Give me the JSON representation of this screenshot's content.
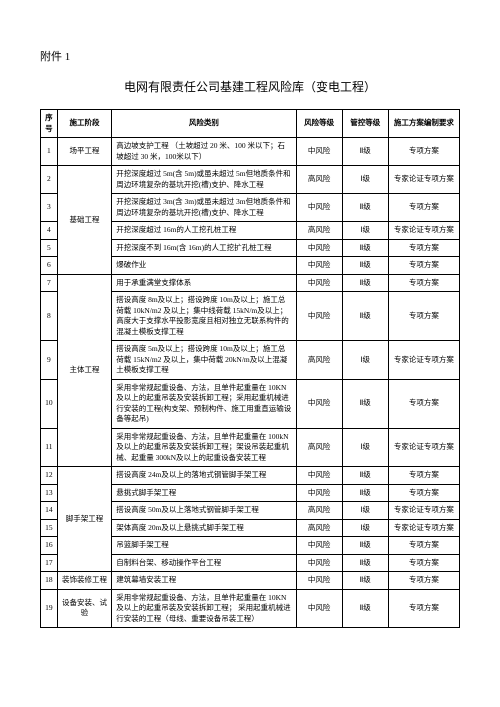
{
  "attachment_label": "附件 1",
  "title": "电网有限责任公司基建工程风险库（变电工程）",
  "headers": {
    "seq": "序号",
    "stage": "施工阶段",
    "category": "风险类别",
    "risk_level": "风险等级",
    "ctrl_level": "管控等级",
    "plan_req": "施工方案编制要求"
  },
  "stages": {
    "s1": "场平工程",
    "s2": "基础工程",
    "s3": "主体工程",
    "s4": "脚手架工程",
    "s5": "装饰装修工程",
    "s6": "设备安装、试验"
  },
  "risk": {
    "mid": "中风险",
    "high": "高风险"
  },
  "ctrl": {
    "l1": "Ⅰ级",
    "l2": "Ⅱ级"
  },
  "plan": {
    "zx": "专项方案",
    "zj": "专家论证专项方案"
  },
  "rows": {
    "r1": "高边坡支护工程  （土坡超过 20 米、100 米以下；石坡超过 30 米，100米以下）",
    "r2": "开挖深度超过  5m(含  5m)或虽未超过  5m但地质条件和周边环境复杂的基坑开挖(槽)支护、降水工程",
    "r3": "开挖深度超过  3m(含  3m)或虽未超过  3m但地质条件和周边环境复杂的基坑开挖(槽)支护、降水工程",
    "r4": "开挖深度超过  16m的人工挖孔桩工程",
    "r5": "开挖深度不到  16m(含 16m)的人工挖扩孔桩工程",
    "r6": "爆破作业",
    "r7": "用于承重满堂支撑体系",
    "r8": "搭设高度 8m及以上；搭设跨度  10m及以上；施工总荷载 10kN/m2 及以上；集中线荷载  15kN/m及以上；高度大于支撑水平投影宽度且相对独立无联系构件的混凝土模板支撑工程",
    "r9": "搭设高度 5m及以上；搭设跨度  10m及以上；施工总荷载 15kN/m2 及以上，集中荷载  20kN/m及以上混凝土模板支撑工程",
    "r10": "采用非常规起重设备、方法，且单件起重量在          10KN及以上的起重吊装及安装拆卸工程；采用起重机械进行安装的工程(构支架、预制构件、施工用重直运输设备等起吊)",
    "r11": "采用非常规起重设备、方法，且单件起重量在         100kN及以上的起重吊装及安装拆卸工程；架设吊装起重机械、起重量 300kN及以上的起重设备安装工程",
    "r12": "搭设高度 24m及以上的落地式钢管脚手架工程",
    "r13": "悬挑式脚手架工程",
    "r14": "搭设高度 50m及以上落地式钢管脚手架工程",
    "r15": "架体高度 20m及以上悬挑式脚手架工程",
    "r16": "吊篮脚手架工程",
    "r17": "自制料台架、移动操作平台工程",
    "r18": "建筑幕墙安装工程",
    "r19": "采用非常规起重设备、方法，且单件起重量在         10KN及以上的起重吊装及安装拆卸工程；  采用起重机械进行安装的工程（母线、重要设备吊装工程）"
  }
}
